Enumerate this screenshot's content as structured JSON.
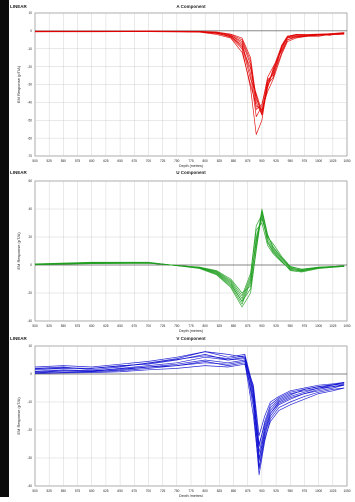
{
  "colors": {
    "frame": "#0b0b0b",
    "grid": "#c8c8c8",
    "axis": "#555555",
    "zero": "#222222"
  },
  "chart_data": [
    {
      "type": "line",
      "scale": "LINEAR",
      "title": "A Component",
      "xlabel": "Depth (metres)",
      "ylabel": "EM Response (pT/A)",
      "xlim": [
        500,
        1050
      ],
      "ylim": [
        -70,
        10
      ],
      "xticks": [
        500,
        525,
        550,
        575,
        600,
        625,
        650,
        675,
        700,
        725,
        750,
        775,
        800,
        825,
        850,
        875,
        900,
        925,
        950,
        975,
        1000,
        1025,
        1050
      ],
      "yticks": [
        10,
        0,
        -10,
        -20,
        -30,
        -40,
        -50,
        -60,
        -70
      ],
      "grid": true,
      "color": "#e00000",
      "x": [
        500,
        600,
        700,
        790,
        820,
        845,
        865,
        880,
        890,
        900,
        910,
        920,
        935,
        945,
        960,
        980,
        1000,
        1020,
        1035,
        1045
      ],
      "series": [
        {
          "values": [
            -0.5,
            -0.3,
            -0.2,
            -0.6,
            -1.5,
            -3,
            -8,
            -27,
            -35,
            -45,
            -28,
            -24,
            -8,
            -3,
            -2,
            -2.5,
            -2,
            -2,
            -1.5,
            -1
          ]
        },
        {
          "values": [
            -0.3,
            -0.4,
            -0.1,
            -0.4,
            -1,
            -2,
            -5,
            -17,
            -40,
            -47,
            -32,
            -22,
            -10,
            -4,
            -3,
            -3,
            -2.5,
            -2,
            -2,
            -1.5
          ]
        },
        {
          "values": [
            -0.4,
            -0.2,
            -0.3,
            -0.5,
            -1.2,
            -3.5,
            -10,
            -32,
            -58,
            -50,
            -30,
            -26,
            -9,
            -4,
            -2,
            -2,
            -2,
            -2.5,
            -1.5,
            -1
          ]
        },
        {
          "values": [
            -0.2,
            -0.3,
            -0.2,
            -0.3,
            -0.8,
            -2.5,
            -7,
            -24,
            -48,
            -42,
            -26,
            -20,
            -11,
            -5,
            -3.5,
            -3,
            -2,
            -1.5,
            -1.5,
            -1.5
          ]
        },
        {
          "values": [
            -0.5,
            -0.5,
            -0.4,
            -0.7,
            -2,
            -4,
            -12,
            -30,
            -42,
            -44,
            -34,
            -27,
            -13,
            -6,
            -4,
            -3,
            -3,
            -2,
            -2,
            -2
          ]
        },
        {
          "values": [
            -0.3,
            -0.3,
            -0.3,
            -0.5,
            -1.3,
            -3,
            -9,
            -21,
            -36,
            -47,
            -29,
            -23,
            -9,
            -3.5,
            -2.5,
            -2.5,
            -2,
            -2,
            -1.8,
            -1.2
          ]
        },
        {
          "values": [
            -0.4,
            -0.4,
            -0.2,
            -0.4,
            -1,
            -2.5,
            -6,
            -19,
            -44,
            -41,
            -27,
            -25,
            -12,
            -5,
            -3,
            -2.8,
            -2.2,
            -2,
            -1.6,
            -1.4
          ]
        },
        {
          "values": [
            -0.2,
            -0.2,
            -0.1,
            -0.3,
            -0.6,
            -1.8,
            -4,
            -15,
            -38,
            -46,
            -31,
            -21,
            -8,
            -3,
            -2.2,
            -2,
            -1.8,
            -1.6,
            -1.2,
            -1
          ]
        }
      ]
    },
    {
      "type": "line",
      "scale": "LINEAR",
      "title": "U Component",
      "xlabel": "Depth (metres)",
      "ylabel": "EM Response (pT/A)",
      "xlim": [
        500,
        1050
      ],
      "ylim": [
        -40,
        60
      ],
      "xticks": [
        500,
        525,
        550,
        575,
        600,
        625,
        650,
        675,
        700,
        725,
        750,
        775,
        800,
        825,
        850,
        875,
        900,
        925,
        950,
        975,
        1000,
        1025,
        1050
      ],
      "yticks": [
        60,
        40,
        20,
        0,
        -20,
        -40
      ],
      "grid": true,
      "color": "#1f9e1f",
      "x": [
        500,
        600,
        700,
        790,
        820,
        845,
        865,
        880,
        890,
        900,
        910,
        920,
        935,
        950,
        970,
        1000,
        1030,
        1045
      ],
      "series": [
        {
          "values": [
            0.5,
            1.5,
            1.5,
            -2,
            -6,
            -14,
            -26,
            -10,
            15,
            40,
            22,
            12,
            5,
            -2,
            -4,
            -2,
            -1,
            -1
          ]
        },
        {
          "values": [
            0.2,
            1,
            1.2,
            -1.5,
            -4,
            -10,
            -20,
            -15,
            20,
            35,
            17,
            10,
            3,
            -4,
            -5,
            -2.5,
            -1.5,
            -1
          ]
        },
        {
          "values": [
            0.8,
            2,
            2,
            -2.5,
            -7,
            -16,
            -30,
            -20,
            10,
            38,
            20,
            15,
            6,
            -1,
            -3,
            -1.5,
            -1,
            -0.5
          ]
        },
        {
          "values": [
            0.4,
            1.2,
            1.4,
            -1.8,
            -5,
            -12,
            -24,
            -8,
            25,
            30,
            14,
            8,
            2,
            -3,
            -4.5,
            -2,
            -1.2,
            -1
          ]
        },
        {
          "values": [
            0.6,
            1.8,
            1.8,
            -2.2,
            -6.5,
            -15,
            -28,
            -12,
            18,
            33,
            19,
            11,
            4,
            -2.5,
            -3.5,
            -1.8,
            -1,
            -0.8
          ]
        },
        {
          "values": [
            0.3,
            1.1,
            1.3,
            -1.6,
            -4.5,
            -11,
            -22,
            -6,
            28,
            36,
            16,
            9,
            2.5,
            -3.5,
            -4,
            -2.2,
            -1.4,
            -1.1
          ]
        },
        {
          "values": [
            0.5,
            1.4,
            1.6,
            -2,
            -5.5,
            -13,
            -26,
            -17,
            12,
            39,
            21,
            13,
            5,
            -1.5,
            -3,
            -1.6,
            -1,
            -0.7
          ]
        }
      ]
    },
    {
      "type": "line",
      "scale": "LINEAR",
      "title": "V Component",
      "xlabel": "Depth (metres)",
      "ylabel": "EM Response (pT/A)",
      "xlim": [
        500,
        1050
      ],
      "ylim": [
        -40,
        10
      ],
      "xticks": [
        500,
        525,
        550,
        575,
        600,
        625,
        650,
        675,
        700,
        725,
        750,
        775,
        800,
        825,
        850,
        875,
        900,
        925,
        950,
        975,
        1000,
        1025,
        1050
      ],
      "yticks": [
        10,
        0,
        -10,
        -20,
        -30,
        -40
      ],
      "grid": true,
      "color": "#1010d0",
      "x": [
        500,
        550,
        600,
        650,
        700,
        750,
        800,
        840,
        870,
        885,
        895,
        905,
        915,
        930,
        950,
        975,
        1000,
        1025,
        1045
      ],
      "series": [
        {
          "values": [
            2.5,
            3,
            2.5,
            3.5,
            4.5,
            6,
            8,
            6,
            7,
            -5,
            -25,
            -18,
            -12,
            -9,
            -7,
            -6,
            -5,
            -4,
            -3.5
          ]
        },
        {
          "values": [
            1.5,
            2,
            2,
            3,
            3.5,
            5,
            7,
            5,
            6,
            -8,
            -30,
            -20,
            -14,
            -10,
            -8,
            -6.5,
            -5,
            -4.5,
            -4
          ]
        },
        {
          "values": [
            0.5,
            1,
            1,
            1.5,
            2.5,
            3.5,
            5,
            4,
            5,
            -10,
            -33,
            -22,
            -15,
            -11,
            -9,
            -7,
            -6,
            -5,
            -4
          ]
        },
        {
          "values": [
            2,
            2.5,
            1.5,
            2.5,
            4,
            5.5,
            8,
            7,
            6,
            -6,
            -28,
            -19,
            -13,
            -9.5,
            -7.5,
            -5.5,
            -4.5,
            -4,
            -3
          ]
        },
        {
          "values": [
            0.8,
            1.2,
            1,
            2,
            3,
            4,
            6,
            5,
            5.5,
            -12,
            -36,
            -24,
            -16,
            -12,
            -10,
            -8,
            -6.5,
            -5.5,
            -5
          ]
        },
        {
          "values": [
            1,
            1.5,
            1.2,
            1.8,
            2.5,
            3,
            4,
            3.5,
            4.5,
            -4,
            -22,
            -15,
            -10,
            -8,
            -6,
            -5,
            -4,
            -3.5,
            -3
          ]
        },
        {
          "values": [
            0.3,
            0.6,
            0.8,
            1.2,
            2,
            3,
            4.5,
            3,
            4,
            -15,
            -34,
            -23,
            -17,
            -13,
            -11,
            -9,
            -7,
            -6,
            -5
          ]
        },
        {
          "values": [
            1.8,
            2.2,
            2,
            2.8,
            3.8,
            5.2,
            6.5,
            5.5,
            6.5,
            -7,
            -31,
            -21,
            -14,
            -10.5,
            -8.5,
            -7,
            -5.5,
            -4.5,
            -3.8
          ]
        },
        {
          "values": [
            0.2,
            0.4,
            0.5,
            0.8,
            1.5,
            2,
            3,
            2.5,
            3.5,
            -9,
            -26,
            -17,
            -11,
            -8.5,
            -6.5,
            -5.5,
            -4.5,
            -3.8,
            -3.2
          ]
        }
      ]
    }
  ]
}
